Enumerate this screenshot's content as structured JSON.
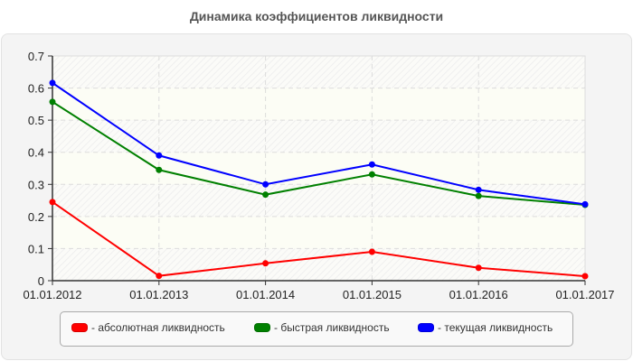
{
  "title": "Динамика коэффициентов ликвидности",
  "chart_data": {
    "type": "line",
    "title": "Динамика коэффициентов ликвидности",
    "xlabel": "",
    "ylabel": "",
    "categories": [
      "01.01.2012",
      "01.01.2013",
      "01.01.2014",
      "01.01.2015",
      "01.01.2016",
      "01.01.2017"
    ],
    "ylim": [
      0,
      0.7
    ],
    "yticks": [
      "0",
      "0.1",
      "0.2",
      "0.3",
      "0.4",
      "0.5",
      "0.6",
      "0.7"
    ],
    "grid": true,
    "legend_position": "bottom",
    "series": [
      {
        "name": "- абсолютная ликвидность",
        "color": "#ff0000",
        "values": [
          0.245,
          0.015,
          0.054,
          0.09,
          0.04,
          0.014
        ]
      },
      {
        "name": "- быстрая ликвидность",
        "color": "#008000",
        "values": [
          0.557,
          0.345,
          0.268,
          0.331,
          0.264,
          0.236
        ]
      },
      {
        "name": "- текущая ликвидность",
        "color": "#0000ff",
        "values": [
          0.616,
          0.39,
          0.3,
          0.362,
          0.283,
          0.238
        ]
      }
    ]
  },
  "legend": [
    {
      "label": "- абсолютная ликвидность",
      "color": "#ff0000"
    },
    {
      "label": "- быстрая ликвидность",
      "color": "#008000"
    },
    {
      "label": "- текущая ликвидность",
      "color": "#0000ff"
    }
  ]
}
